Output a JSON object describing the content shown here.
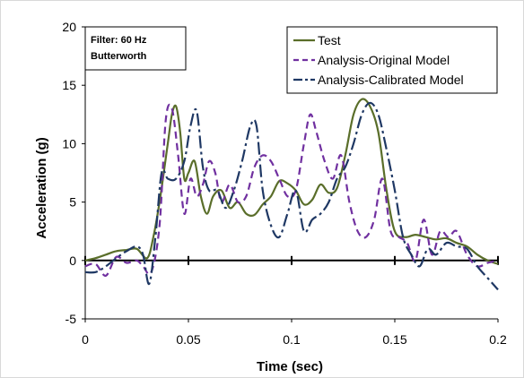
{
  "chart_data": {
    "type": "line",
    "title": "",
    "xlabel": "Time (sec)",
    "ylabel": "Acceleration (g)",
    "xlim": [
      0,
      0.2
    ],
    "ylim": [
      -5,
      20
    ],
    "xticks": [
      0,
      0.05,
      0.1,
      0.15,
      0.2
    ],
    "yticks": [
      -5,
      0,
      5,
      10,
      15,
      20
    ],
    "xtick_labels": [
      "0",
      "0.05",
      "0.1",
      "0.15",
      "0.2"
    ],
    "ytick_labels": [
      "-5",
      "0",
      "5",
      "10",
      "15",
      "20"
    ],
    "grid": false,
    "legend_position": "top-right",
    "annotation": [
      "Filter: 60 Hz",
      "Butterworth"
    ],
    "series": [
      {
        "name": "Test",
        "color": "#5a6e2a",
        "dash": "solid",
        "x": [
          0,
          0.005,
          0.01,
          0.015,
          0.02,
          0.025,
          0.03,
          0.033,
          0.036,
          0.04,
          0.042,
          0.044,
          0.046,
          0.048,
          0.05,
          0.053,
          0.056,
          0.059,
          0.062,
          0.066,
          0.07,
          0.074,
          0.078,
          0.082,
          0.086,
          0.09,
          0.094,
          0.098,
          0.102,
          0.106,
          0.11,
          0.114,
          0.118,
          0.122,
          0.126,
          0.13,
          0.134,
          0.138,
          0.142,
          0.146,
          0.15,
          0.155,
          0.16,
          0.165,
          0.17,
          0.175,
          0.18,
          0.185,
          0.19,
          0.195,
          0.2
        ],
        "y": [
          0,
          0.2,
          0.5,
          0.8,
          0.9,
          1.0,
          0.2,
          2.0,
          5.0,
          10.0,
          12.5,
          13.2,
          11.0,
          7.0,
          7.5,
          8.5,
          5.5,
          4.0,
          5.5,
          6.0,
          4.5,
          5.0,
          4.0,
          3.9,
          4.8,
          5.5,
          6.8,
          6.6,
          6.0,
          4.8,
          5.2,
          6.5,
          5.8,
          6.2,
          9.0,
          12.5,
          13.8,
          13.2,
          11.0,
          6.0,
          2.5,
          2.0,
          2.2,
          2.0,
          1.8,
          1.9,
          1.5,
          1.2,
          0.5,
          0.0,
          -0.3
        ]
      },
      {
        "name": "Analysis-Original Model",
        "color": "#7030a0",
        "dash": "8,5",
        "x": [
          0,
          0.005,
          0.01,
          0.015,
          0.02,
          0.025,
          0.028,
          0.032,
          0.036,
          0.039,
          0.042,
          0.045,
          0.048,
          0.051,
          0.054,
          0.057,
          0.06,
          0.063,
          0.066,
          0.07,
          0.074,
          0.078,
          0.082,
          0.086,
          0.09,
          0.094,
          0.098,
          0.102,
          0.106,
          0.109,
          0.112,
          0.116,
          0.12,
          0.124,
          0.128,
          0.132,
          0.136,
          0.14,
          0.144,
          0.148,
          0.152,
          0.156,
          0.16,
          0.164,
          0.168,
          0.172,
          0.176,
          0.18,
          0.185,
          0.19,
          0.195,
          0.2
        ],
        "y": [
          -0.5,
          -0.3,
          -1.3,
          0.3,
          -0.2,
          0.0,
          -0.5,
          -1.0,
          3.0,
          12.0,
          13.0,
          9.0,
          4.0,
          7.0,
          5.5,
          6.5,
          8.5,
          7.5,
          5.0,
          6.5,
          5.0,
          5.5,
          8.0,
          9.0,
          8.5,
          7.0,
          5.5,
          6.0,
          10.0,
          12.5,
          11.0,
          8.5,
          7.0,
          9.0,
          5.0,
          2.5,
          2.0,
          3.5,
          7.0,
          2.5,
          2.0,
          1.5,
          0.0,
          3.5,
          0.5,
          2.5,
          2.0,
          2.5,
          0.5,
          -0.5,
          -0.2,
          0.0
        ]
      },
      {
        "name": "Analysis-Calibrated Model",
        "color": "#1f3864",
        "dash": "14,4,3,4",
        "x": [
          0,
          0.005,
          0.01,
          0.015,
          0.02,
          0.025,
          0.028,
          0.031,
          0.034,
          0.037,
          0.04,
          0.044,
          0.048,
          0.051,
          0.054,
          0.057,
          0.06,
          0.064,
          0.068,
          0.072,
          0.076,
          0.08,
          0.083,
          0.086,
          0.09,
          0.094,
          0.098,
          0.102,
          0.106,
          0.11,
          0.114,
          0.118,
          0.122,
          0.126,
          0.13,
          0.134,
          0.138,
          0.142,
          0.146,
          0.15,
          0.154,
          0.158,
          0.162,
          0.166,
          0.17,
          0.175,
          0.18,
          0.185,
          0.19,
          0.195,
          0.2
        ],
        "y": [
          -1.0,
          -1.0,
          -0.5,
          0.2,
          0.8,
          1.2,
          0.5,
          -2.0,
          2.0,
          7.5,
          7.0,
          7.0,
          8.5,
          11.5,
          12.8,
          8.0,
          6.0,
          6.0,
          4.5,
          6.0,
          8.5,
          11.5,
          11.5,
          6.0,
          3.0,
          2.0,
          4.0,
          6.0,
          2.5,
          3.5,
          4.0,
          5.0,
          7.0,
          8.0,
          10.0,
          12.5,
          13.5,
          12.5,
          9.5,
          6.0,
          2.0,
          0.5,
          -0.5,
          1.0,
          0.5,
          1.5,
          1.2,
          1.0,
          -0.5,
          -1.5,
          -2.5
        ]
      }
    ]
  }
}
